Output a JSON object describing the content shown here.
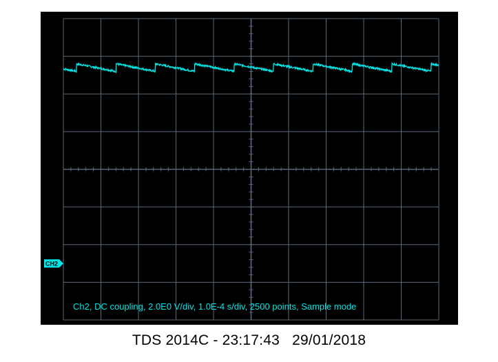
{
  "chart_data": {
    "type": "line",
    "grid": true,
    "divisions": {
      "horizontal": 10,
      "vertical": 8
    },
    "channel_marker": "CH2",
    "channel_marker_level_div": -2.5,
    "status_text": "Ch2, DC coupling, 2.0E0 V/div, 1.0E-4 s/div, 2500 points, Sample mode",
    "volts_per_div": 2.0,
    "seconds_per_div": 0.0001,
    "points": 2500,
    "series": [
      {
        "channel": "Ch2",
        "waveform": "sawtooth",
        "period_div": 1.05,
        "first_jump_div": 0.35,
        "high_div": 2.8,
        "low_div": 2.6,
        "x_range_div": [
          0,
          10
        ]
      }
    ],
    "colors": {
      "trace": "#00e5e5",
      "grid": "#5a6a7a",
      "background": "#000000"
    }
  },
  "footer": {
    "model_time": "TDS 2014C - 23:17:43",
    "date": "29/01/2018"
  }
}
